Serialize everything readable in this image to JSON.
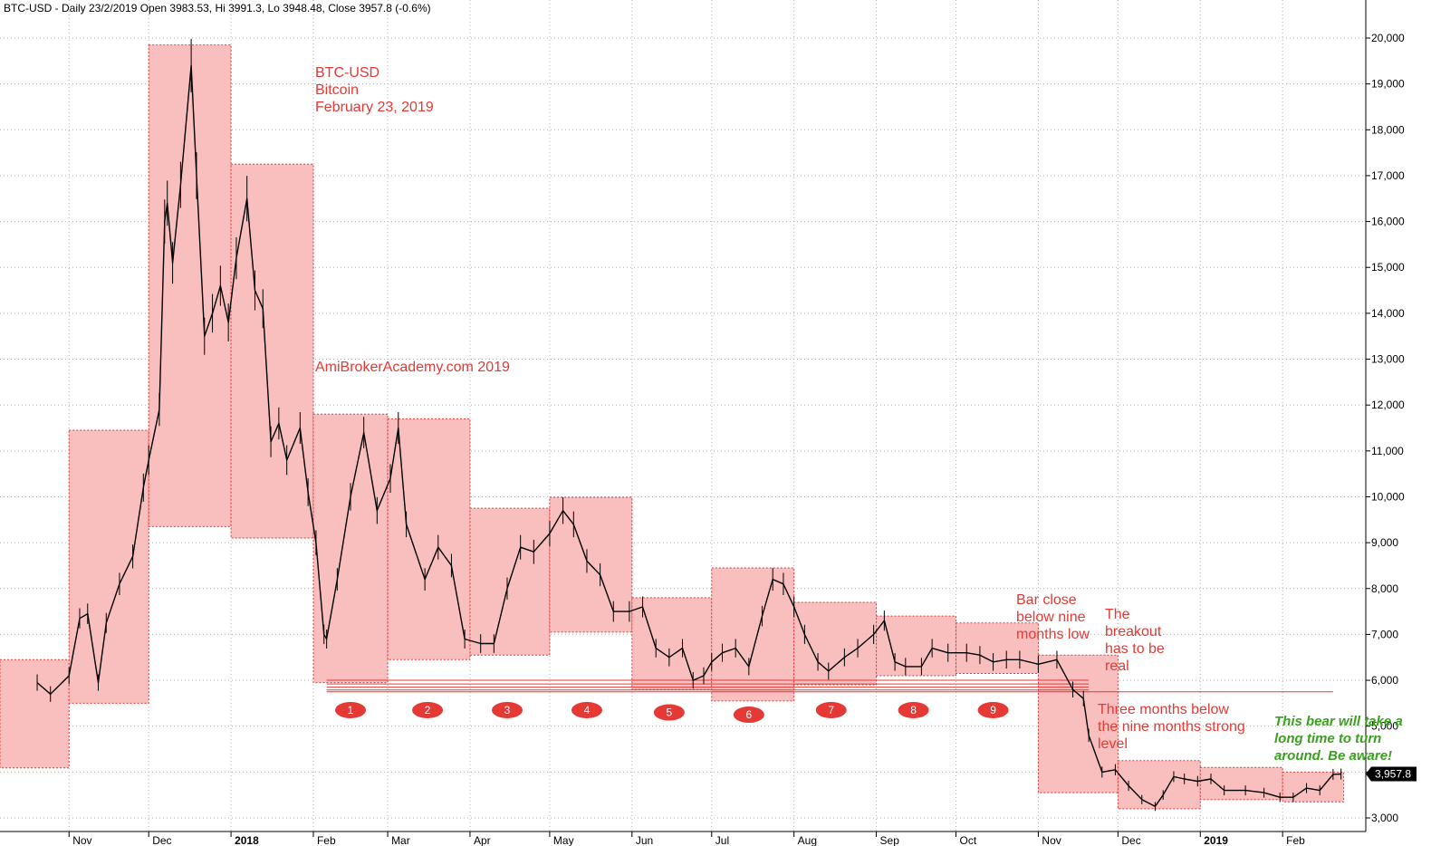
{
  "header": "BTC-USD - Daily 23/2/2019 Open 3983.53, Hi 3991.3, Lo 3948.48, Close 3957.8 (-0.6%)",
  "chart_data": {
    "type": "line",
    "ylim": [
      2800,
      20600
    ],
    "y_ticks": [
      "20,000",
      "19,000",
      "18,000",
      "17,000",
      "16,000",
      "15,000",
      "14,000",
      "13,000",
      "12,000",
      "11,000",
      "10,000",
      "9,000",
      "8,000",
      "7,000",
      "6,000",
      "5,000",
      "4,000",
      "3,000"
    ],
    "y_tick_values": [
      20000,
      19000,
      18000,
      17000,
      16000,
      15000,
      14000,
      13000,
      12000,
      11000,
      10000,
      9000,
      8000,
      7000,
      6000,
      5000,
      4000,
      3000
    ],
    "x_labels": [
      {
        "label": "Nov",
        "date": "2017-11-01",
        "year": false
      },
      {
        "label": "Dec",
        "date": "2017-12-01",
        "year": false
      },
      {
        "label": "2018",
        "date": "2018-01-01",
        "year": true
      },
      {
        "label": "Feb",
        "date": "2018-02-01",
        "year": false
      },
      {
        "label": "Mar",
        "date": "2018-03-01",
        "year": false
      },
      {
        "label": "Apr",
        "date": "2018-04-01",
        "year": false
      },
      {
        "label": "May",
        "date": "2018-05-01",
        "year": false
      },
      {
        "label": "Jun",
        "date": "2018-06-01",
        "year": false
      },
      {
        "label": "Jul",
        "date": "2018-07-01",
        "year": false
      },
      {
        "label": "Aug",
        "date": "2018-08-01",
        "year": false
      },
      {
        "label": "Sep",
        "date": "2018-09-01",
        "year": false
      },
      {
        "label": "Oct",
        "date": "2018-10-01",
        "year": false
      },
      {
        "label": "Nov",
        "date": "2018-11-01",
        "year": false
      },
      {
        "label": "Dec",
        "date": "2018-12-01",
        "year": false
      },
      {
        "label": "2019",
        "date": "2019-01-01",
        "year": true
      },
      {
        "label": "Feb",
        "date": "2019-02-01",
        "year": false
      }
    ],
    "series": [
      {
        "values": [
          [
            "2017-10-20",
            5950
          ],
          [
            "2017-10-25",
            5700
          ],
          [
            "2017-11-01",
            6100
          ],
          [
            "2017-11-05",
            7350
          ],
          [
            "2017-11-08",
            7450
          ],
          [
            "2017-11-12",
            5950
          ],
          [
            "2017-11-15",
            7250
          ],
          [
            "2017-11-20",
            8100
          ],
          [
            "2017-11-25",
            8700
          ],
          [
            "2017-11-29",
            10200
          ],
          [
            "2017-12-01",
            10800
          ],
          [
            "2017-12-05",
            11900
          ],
          [
            "2017-12-07",
            16000
          ],
          [
            "2017-12-08",
            16400
          ],
          [
            "2017-12-10",
            15100
          ],
          [
            "2017-12-13",
            16800
          ],
          [
            "2017-12-17",
            19400
          ],
          [
            "2017-12-19",
            17000
          ],
          [
            "2017-12-22",
            13500
          ],
          [
            "2017-12-25",
            14000
          ],
          [
            "2017-12-28",
            14600
          ],
          [
            "2017-12-31",
            13800
          ],
          [
            "2018-01-03",
            15200
          ],
          [
            "2018-01-07",
            16500
          ],
          [
            "2018-01-10",
            14500
          ],
          [
            "2018-01-13",
            14100
          ],
          [
            "2018-01-16",
            11200
          ],
          [
            "2018-01-19",
            11600
          ],
          [
            "2018-01-22",
            10800
          ],
          [
            "2018-01-27",
            11500
          ],
          [
            "2018-01-30",
            10100
          ],
          [
            "2018-02-02",
            9000
          ],
          [
            "2018-02-05",
            7000
          ],
          [
            "2018-02-06",
            6900
          ],
          [
            "2018-02-10",
            8200
          ],
          [
            "2018-02-15",
            10000
          ],
          [
            "2018-02-20",
            11400
          ],
          [
            "2018-02-25",
            9700
          ],
          [
            "2018-03-02",
            10400
          ],
          [
            "2018-03-05",
            11500
          ],
          [
            "2018-03-08",
            9400
          ],
          [
            "2018-03-15",
            8200
          ],
          [
            "2018-03-20",
            8900
          ],
          [
            "2018-03-25",
            8500
          ],
          [
            "2018-03-30",
            6900
          ],
          [
            "2018-04-05",
            6800
          ],
          [
            "2018-04-10",
            6800
          ],
          [
            "2018-04-15",
            8000
          ],
          [
            "2018-04-20",
            8900
          ],
          [
            "2018-04-25",
            8800
          ],
          [
            "2018-05-01",
            9200
          ],
          [
            "2018-05-06",
            9700
          ],
          [
            "2018-05-10",
            9400
          ],
          [
            "2018-05-15",
            8600
          ],
          [
            "2018-05-20",
            8300
          ],
          [
            "2018-05-25",
            7500
          ],
          [
            "2018-05-31",
            7500
          ],
          [
            "2018-06-05",
            7600
          ],
          [
            "2018-06-10",
            6700
          ],
          [
            "2018-06-15",
            6500
          ],
          [
            "2018-06-20",
            6700
          ],
          [
            "2018-06-24",
            6000
          ],
          [
            "2018-06-28",
            6100
          ],
          [
            "2018-07-01",
            6400
          ],
          [
            "2018-07-05",
            6600
          ],
          [
            "2018-07-10",
            6700
          ],
          [
            "2018-07-15",
            6300
          ],
          [
            "2018-07-20",
            7400
          ],
          [
            "2018-07-24",
            8200
          ],
          [
            "2018-07-28",
            8100
          ],
          [
            "2018-08-01",
            7600
          ],
          [
            "2018-08-05",
            7000
          ],
          [
            "2018-08-10",
            6400
          ],
          [
            "2018-08-14",
            6200
          ],
          [
            "2018-08-20",
            6500
          ],
          [
            "2018-08-25",
            6700
          ],
          [
            "2018-08-31",
            7000
          ],
          [
            "2018-09-04",
            7300
          ],
          [
            "2018-09-08",
            6400
          ],
          [
            "2018-09-12",
            6300
          ],
          [
            "2018-09-18",
            6300
          ],
          [
            "2018-09-22",
            6700
          ],
          [
            "2018-09-28",
            6600
          ],
          [
            "2018-10-05",
            6600
          ],
          [
            "2018-10-10",
            6550
          ],
          [
            "2018-10-15",
            6400
          ],
          [
            "2018-10-20",
            6450
          ],
          [
            "2018-10-25",
            6450
          ],
          [
            "2018-11-01",
            6350
          ],
          [
            "2018-11-08",
            6450
          ],
          [
            "2018-11-14",
            5800
          ],
          [
            "2018-11-18",
            5600
          ],
          [
            "2018-11-20",
            4800
          ],
          [
            "2018-11-25",
            4000
          ],
          [
            "2018-11-30",
            4050
          ],
          [
            "2018-12-05",
            3700
          ],
          [
            "2018-12-10",
            3400
          ],
          [
            "2018-12-15",
            3250
          ],
          [
            "2018-12-18",
            3500
          ],
          [
            "2018-12-22",
            3900
          ],
          [
            "2018-12-26",
            3850
          ],
          [
            "2018-12-31",
            3800
          ],
          [
            "2019-01-05",
            3850
          ],
          [
            "2019-01-10",
            3600
          ],
          [
            "2019-01-18",
            3600
          ],
          [
            "2019-01-25",
            3550
          ],
          [
            "2019-01-31",
            3450
          ],
          [
            "2019-02-05",
            3450
          ],
          [
            "2019-02-10",
            3650
          ],
          [
            "2019-02-15",
            3600
          ],
          [
            "2019-02-20",
            3950
          ],
          [
            "2019-02-23",
            3957.8
          ]
        ]
      }
    ],
    "zones": [
      {
        "start": "2017-10-06",
        "end": "2017-10-31",
        "low": 4090,
        "high": 6450
      },
      {
        "start": "2017-11-01",
        "end": "2017-11-30",
        "low": 5500,
        "high": 11450
      },
      {
        "start": "2017-12-01",
        "end": "2017-12-31",
        "low": 9350,
        "high": 19850
      },
      {
        "start": "2018-01-01",
        "end": "2018-01-31",
        "low": 9100,
        "high": 17250
      },
      {
        "start": "2018-02-01",
        "end": "2018-02-28",
        "low": 5950,
        "high": 11800
      },
      {
        "start": "2018-03-01",
        "end": "2018-03-31",
        "low": 6450,
        "high": 11700
      },
      {
        "start": "2018-04-01",
        "end": "2018-04-30",
        "low": 6550,
        "high": 9750
      },
      {
        "start": "2018-05-01",
        "end": "2018-05-31",
        "low": 7050,
        "high": 9990
      },
      {
        "start": "2018-06-01",
        "end": "2018-06-30",
        "low": 5800,
        "high": 7800
      },
      {
        "start": "2018-07-01",
        "end": "2018-07-31",
        "low": 5550,
        "high": 8450
      },
      {
        "start": "2018-08-01",
        "end": "2018-08-31",
        "low": 5900,
        "high": 7700
      },
      {
        "start": "2018-09-01",
        "end": "2018-09-30",
        "low": 6100,
        "high": 7400
      },
      {
        "start": "2018-10-01",
        "end": "2018-10-31",
        "low": 6150,
        "high": 7250
      },
      {
        "start": "2018-11-01",
        "end": "2018-11-30",
        "low": 3550,
        "high": 6550
      },
      {
        "start": "2018-12-01",
        "end": "2018-12-31",
        "low": 3200,
        "high": 4250
      },
      {
        "start": "2019-01-01",
        "end": "2019-01-31",
        "low": 3400,
        "high": 4100
      },
      {
        "start": "2019-02-01",
        "end": "2019-02-23",
        "low": 3350,
        "high": 4000
      }
    ],
    "support_lines": [
      {
        "start": "2018-02-06",
        "end": "2018-11-20",
        "value": 6000
      },
      {
        "start": "2018-02-06",
        "end": "2018-11-20",
        "value": 5920
      },
      {
        "start": "2018-02-06",
        "end": "2018-11-20",
        "value": 5850
      },
      {
        "start": "2018-02-06",
        "end": "2018-11-20",
        "value": 5790
      },
      {
        "start": "2018-02-06",
        "end": "2019-02-20",
        "value": 5750
      }
    ],
    "markers": [
      {
        "label": "1",
        "date": "2018-02-15",
        "value": 5350
      },
      {
        "label": "2",
        "date": "2018-03-16",
        "value": 5350
      },
      {
        "label": "3",
        "date": "2018-04-15",
        "value": 5350
      },
      {
        "label": "4",
        "date": "2018-05-15",
        "value": 5350
      },
      {
        "label": "5",
        "date": "2018-06-15",
        "value": 5300
      },
      {
        "label": "6",
        "date": "2018-07-15",
        "value": 5250
      },
      {
        "label": "7",
        "date": "2018-08-15",
        "value": 5350
      },
      {
        "label": "8",
        "date": "2018-09-15",
        "value": 5350
      },
      {
        "label": "9",
        "date": "2018-10-15",
        "value": 5350
      }
    ],
    "last_close": "3,957.8",
    "last_close_value": 3957.8
  },
  "annotations": {
    "title_lines": [
      "BTC-USD",
      "Bitcoin",
      "February 23, 2019"
    ],
    "watermark": "AmiBrokerAcademy.com  2019",
    "bar_close_lines": [
      "Bar close",
      "below nine",
      "months low"
    ],
    "breakout_lines": [
      "The",
      "breakout",
      "has to be",
      "real"
    ],
    "three_months_lines": [
      "Three months below",
      "the nine months strong",
      "level"
    ],
    "bear_lines": [
      "This bear will take a",
      "long time to turn",
      "around. Be aware!"
    ]
  },
  "colors": {
    "zone_fill": "#f9b9b9",
    "zone_border": "#e53935",
    "price_line": "#000000",
    "marker_fill": "#e53935",
    "note_red": "#e53935",
    "note_green": "#3aa01f",
    "grid": "#b0b0b0"
  }
}
